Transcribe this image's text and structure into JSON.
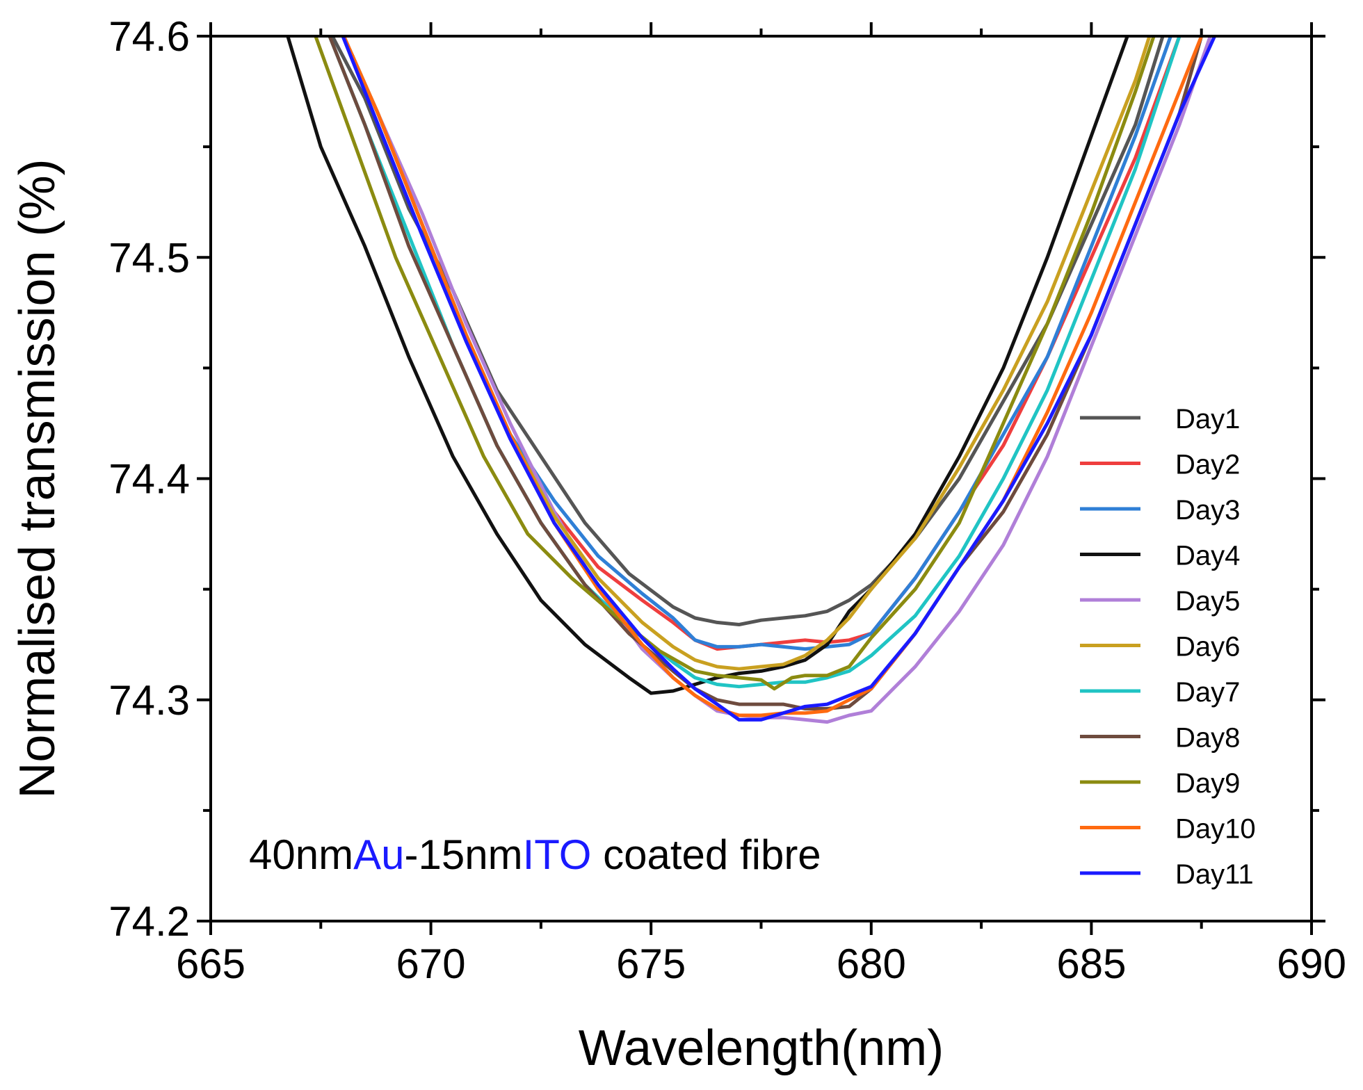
{
  "chart_data": {
    "type": "line",
    "xlabel": "Wavelength(nm)",
    "ylabel": "Normalised transmission (%)",
    "xlim": [
      665,
      690
    ],
    "ylim": [
      74.2,
      74.6
    ],
    "x_ticks": [
      "665",
      "670",
      "675",
      "680",
      "685",
      "690"
    ],
    "y_ticks": [
      "74.2",
      "74.3",
      "74.4",
      "74.5",
      "74.6"
    ],
    "grid": false,
    "legend_position": "right",
    "annotation": {
      "parts": [
        {
          "text": "40nm",
          "color": "#000000"
        },
        {
          "text": "Au",
          "color": "#1a1aff"
        },
        {
          "text": "-15nm",
          "color": "#000000"
        },
        {
          "text": "ITO",
          "color": "#1a1aff"
        },
        {
          "text": " coated fibre",
          "color": "#000000"
        }
      ]
    },
    "series": [
      {
        "name": "Day1",
        "color": "#555555",
        "points": [
          [
            667.5,
            74.61
          ],
          [
            668.5,
            74.572
          ],
          [
            669.5,
            74.522
          ],
          [
            670.5,
            74.485
          ],
          [
            671.5,
            74.44
          ],
          [
            672.5,
            74.41
          ],
          [
            673.5,
            74.38
          ],
          [
            674.5,
            74.357
          ],
          [
            675.5,
            74.342
          ],
          [
            676,
            74.337
          ],
          [
            676.5,
            74.335
          ],
          [
            677,
            74.334
          ],
          [
            677.5,
            74.336
          ],
          [
            678,
            74.337
          ],
          [
            678.5,
            74.338
          ],
          [
            679,
            74.34
          ],
          [
            679.5,
            74.345
          ],
          [
            680,
            74.352
          ],
          [
            681,
            74.373
          ],
          [
            682,
            74.4
          ],
          [
            683,
            74.435
          ],
          [
            684,
            74.47
          ],
          [
            685,
            74.515
          ],
          [
            686,
            74.56
          ],
          [
            686.7,
            74.605
          ]
        ]
      },
      {
        "name": "Day2",
        "color": "#ef3e3e",
        "points": [
          [
            667.8,
            74.61
          ],
          [
            668.8,
            74.565
          ],
          [
            669.8,
            74.515
          ],
          [
            670.8,
            74.465
          ],
          [
            671.8,
            74.42
          ],
          [
            672.8,
            74.385
          ],
          [
            673.8,
            74.36
          ],
          [
            674.8,
            74.345
          ],
          [
            675.5,
            74.335
          ],
          [
            676,
            74.327
          ],
          [
            676.5,
            74.323
          ],
          [
            677,
            74.324
          ],
          [
            677.5,
            74.325
          ],
          [
            678,
            74.326
          ],
          [
            678.5,
            74.327
          ],
          [
            679,
            74.326
          ],
          [
            679.5,
            74.327
          ],
          [
            680,
            74.33
          ],
          [
            681,
            74.355
          ],
          [
            682,
            74.385
          ],
          [
            683,
            74.415
          ],
          [
            684,
            74.455
          ],
          [
            685,
            74.5
          ],
          [
            686,
            74.545
          ],
          [
            687,
            74.6
          ]
        ]
      },
      {
        "name": "Day3",
        "color": "#2f7fd6",
        "points": [
          [
            667.8,
            74.61
          ],
          [
            668.8,
            74.565
          ],
          [
            669.8,
            74.515
          ],
          [
            670.8,
            74.465
          ],
          [
            671.8,
            74.42
          ],
          [
            672.8,
            74.39
          ],
          [
            673.8,
            74.365
          ],
          [
            674.8,
            74.348
          ],
          [
            675.5,
            74.337
          ],
          [
            676,
            74.327
          ],
          [
            676.5,
            74.324
          ],
          [
            677,
            74.324
          ],
          [
            677.5,
            74.325
          ],
          [
            678,
            74.324
          ],
          [
            678.5,
            74.323
          ],
          [
            679,
            74.324
          ],
          [
            679.5,
            74.325
          ],
          [
            680,
            74.33
          ],
          [
            681,
            74.355
          ],
          [
            682,
            74.385
          ],
          [
            683,
            74.42
          ],
          [
            684,
            74.455
          ],
          [
            685,
            74.505
          ],
          [
            686,
            74.555
          ],
          [
            686.8,
            74.6
          ]
        ]
      },
      {
        "name": "Day4",
        "color": "#111111",
        "points": [
          [
            666.6,
            74.61
          ],
          [
            667.5,
            74.55
          ],
          [
            668.5,
            74.505
          ],
          [
            669.5,
            74.455
          ],
          [
            670.5,
            74.41
          ],
          [
            671.5,
            74.375
          ],
          [
            672.5,
            74.345
          ],
          [
            673.5,
            74.325
          ],
          [
            674.5,
            74.31
          ],
          [
            675,
            74.303
          ],
          [
            675.5,
            74.304
          ],
          [
            676,
            74.307
          ],
          [
            676.5,
            74.31
          ],
          [
            677,
            74.312
          ],
          [
            677.5,
            74.313
          ],
          [
            678,
            74.315
          ],
          [
            678.5,
            74.318
          ],
          [
            679,
            74.325
          ],
          [
            679.5,
            74.34
          ],
          [
            680,
            74.35
          ],
          [
            681,
            74.375
          ],
          [
            682,
            74.41
          ],
          [
            683,
            74.45
          ],
          [
            684,
            74.5
          ],
          [
            685,
            74.555
          ],
          [
            686,
            74.61
          ]
        ]
      },
      {
        "name": "Day5",
        "color": "#b07fd8",
        "points": [
          [
            667.8,
            74.61
          ],
          [
            668.8,
            74.565
          ],
          [
            669.8,
            74.52
          ],
          [
            670.8,
            74.47
          ],
          [
            671.8,
            74.425
          ],
          [
            672.8,
            74.385
          ],
          [
            673.8,
            74.35
          ],
          [
            674.8,
            74.323
          ],
          [
            675.5,
            74.31
          ],
          [
            676,
            74.302
          ],
          [
            676.5,
            74.295
          ],
          [
            677,
            74.293
          ],
          [
            677.5,
            74.292
          ],
          [
            678,
            74.292
          ],
          [
            678.5,
            74.291
          ],
          [
            679,
            74.29
          ],
          [
            679.5,
            74.293
          ],
          [
            680,
            74.295
          ],
          [
            680.5,
            74.305
          ],
          [
            681,
            74.315
          ],
          [
            682,
            74.34
          ],
          [
            683,
            74.37
          ],
          [
            684,
            74.41
          ],
          [
            685,
            74.46
          ],
          [
            686,
            74.51
          ],
          [
            687,
            74.56
          ],
          [
            687.7,
            74.6
          ]
        ]
      },
      {
        "name": "Day6",
        "color": "#c9a020",
        "points": [
          [
            667.8,
            74.61
          ],
          [
            668.8,
            74.565
          ],
          [
            669.8,
            74.515
          ],
          [
            670.8,
            74.465
          ],
          [
            671.8,
            74.42
          ],
          [
            672.8,
            74.383
          ],
          [
            673.8,
            74.355
          ],
          [
            674.8,
            74.335
          ],
          [
            675.5,
            74.324
          ],
          [
            676,
            74.318
          ],
          [
            676.5,
            74.315
          ],
          [
            677,
            74.314
          ],
          [
            677.5,
            74.315
          ],
          [
            678,
            74.316
          ],
          [
            678.5,
            74.32
          ],
          [
            679,
            74.327
          ],
          [
            679.5,
            74.337
          ],
          [
            680,
            74.35
          ],
          [
            681,
            74.373
          ],
          [
            682,
            74.405
          ],
          [
            683,
            74.44
          ],
          [
            684,
            74.48
          ],
          [
            685,
            74.53
          ],
          [
            686,
            74.58
          ],
          [
            686.4,
            74.605
          ]
        ]
      },
      {
        "name": "Day7",
        "color": "#20c4c4",
        "points": [
          [
            667.5,
            74.61
          ],
          [
            668.5,
            74.56
          ],
          [
            669.5,
            74.51
          ],
          [
            670.5,
            74.46
          ],
          [
            671.5,
            74.415
          ],
          [
            672.5,
            74.38
          ],
          [
            673.5,
            74.352
          ],
          [
            674.5,
            74.333
          ],
          [
            675.5,
            74.317
          ],
          [
            676,
            74.31
          ],
          [
            676.5,
            74.307
          ],
          [
            677,
            74.306
          ],
          [
            677.5,
            74.307
          ],
          [
            678,
            74.308
          ],
          [
            678.5,
            74.308
          ],
          [
            679,
            74.31
          ],
          [
            679.5,
            74.313
          ],
          [
            680,
            74.32
          ],
          [
            681,
            74.338
          ],
          [
            682,
            74.365
          ],
          [
            683,
            74.4
          ],
          [
            684,
            74.44
          ],
          [
            685,
            74.49
          ],
          [
            686,
            74.54
          ],
          [
            687,
            74.6
          ]
        ]
      },
      {
        "name": "Day8",
        "color": "#6e4b3e",
        "points": [
          [
            667.5,
            74.61
          ],
          [
            668.5,
            74.56
          ],
          [
            669.5,
            74.505
          ],
          [
            670.5,
            74.46
          ],
          [
            671.5,
            74.415
          ],
          [
            672.5,
            74.38
          ],
          [
            673.5,
            74.352
          ],
          [
            674.5,
            74.33
          ],
          [
            675.5,
            74.313
          ],
          [
            676,
            74.305
          ],
          [
            676.5,
            74.3
          ],
          [
            677,
            74.298
          ],
          [
            677.5,
            74.298
          ],
          [
            678,
            74.298
          ],
          [
            678.5,
            74.296
          ],
          [
            679,
            74.296
          ],
          [
            679.5,
            74.297
          ],
          [
            680,
            74.305
          ],
          [
            681,
            74.33
          ],
          [
            682,
            74.36
          ],
          [
            683,
            74.385
          ],
          [
            684,
            74.42
          ],
          [
            685,
            74.465
          ],
          [
            686,
            74.515
          ],
          [
            687,
            74.565
          ],
          [
            687.5,
            74.6
          ]
        ]
      },
      {
        "name": "Day9",
        "color": "#8b8b10",
        "points": [
          [
            667.2,
            74.61
          ],
          [
            668.2,
            74.555
          ],
          [
            669.2,
            74.5
          ],
          [
            670.2,
            74.455
          ],
          [
            671.2,
            74.41
          ],
          [
            672.2,
            74.375
          ],
          [
            673.2,
            74.355
          ],
          [
            674.2,
            74.338
          ],
          [
            675.2,
            74.322
          ],
          [
            676,
            74.313
          ],
          [
            676.5,
            74.311
          ],
          [
            677,
            74.31
          ],
          [
            677.5,
            74.309
          ],
          [
            677.8,
            74.305
          ],
          [
            678.2,
            74.31
          ],
          [
            678.5,
            74.311
          ],
          [
            679,
            74.311
          ],
          [
            679.5,
            74.315
          ],
          [
            680,
            74.328
          ],
          [
            681,
            74.35
          ],
          [
            682,
            74.38
          ],
          [
            683,
            74.425
          ],
          [
            684,
            74.47
          ],
          [
            685,
            74.52
          ],
          [
            686,
            74.575
          ],
          [
            686.5,
            74.605
          ]
        ]
      },
      {
        "name": "Day10",
        "color": "#ff6a10",
        "points": [
          [
            667.8,
            74.61
          ],
          [
            668.8,
            74.565
          ],
          [
            669.8,
            74.515
          ],
          [
            670.8,
            74.465
          ],
          [
            671.8,
            74.42
          ],
          [
            672.8,
            74.38
          ],
          [
            673.8,
            74.35
          ],
          [
            674.8,
            74.325
          ],
          [
            675.5,
            74.31
          ],
          [
            676,
            74.302
          ],
          [
            676.5,
            74.296
          ],
          [
            677,
            74.293
          ],
          [
            677.5,
            74.293
          ],
          [
            678,
            74.294
          ],
          [
            678.5,
            74.294
          ],
          [
            679,
            74.295
          ],
          [
            679.5,
            74.3
          ],
          [
            680,
            74.305
          ],
          [
            681,
            74.33
          ],
          [
            682,
            74.36
          ],
          [
            683,
            74.39
          ],
          [
            684,
            74.43
          ],
          [
            685,
            74.475
          ],
          [
            686,
            74.525
          ],
          [
            687,
            74.575
          ],
          [
            687.5,
            74.6
          ]
        ]
      },
      {
        "name": "Day11",
        "color": "#1a1aff",
        "points": [
          [
            667.8,
            74.61
          ],
          [
            668.8,
            74.56
          ],
          [
            669.8,
            74.51
          ],
          [
            670.8,
            74.462
          ],
          [
            671.8,
            74.418
          ],
          [
            672.8,
            74.38
          ],
          [
            673.8,
            74.352
          ],
          [
            674.8,
            74.328
          ],
          [
            675.5,
            74.314
          ],
          [
            676,
            74.305
          ],
          [
            676.5,
            74.298
          ],
          [
            677,
            74.291
          ],
          [
            677.5,
            74.291
          ],
          [
            678,
            74.294
          ],
          [
            678.5,
            74.297
          ],
          [
            679,
            74.298
          ],
          [
            679.5,
            74.302
          ],
          [
            680,
            74.306
          ],
          [
            681,
            74.33
          ],
          [
            682,
            74.36
          ],
          [
            683,
            74.39
          ],
          [
            684,
            74.425
          ],
          [
            685,
            74.465
          ],
          [
            686,
            74.515
          ],
          [
            687,
            74.565
          ],
          [
            687.8,
            74.6
          ]
        ]
      }
    ]
  }
}
